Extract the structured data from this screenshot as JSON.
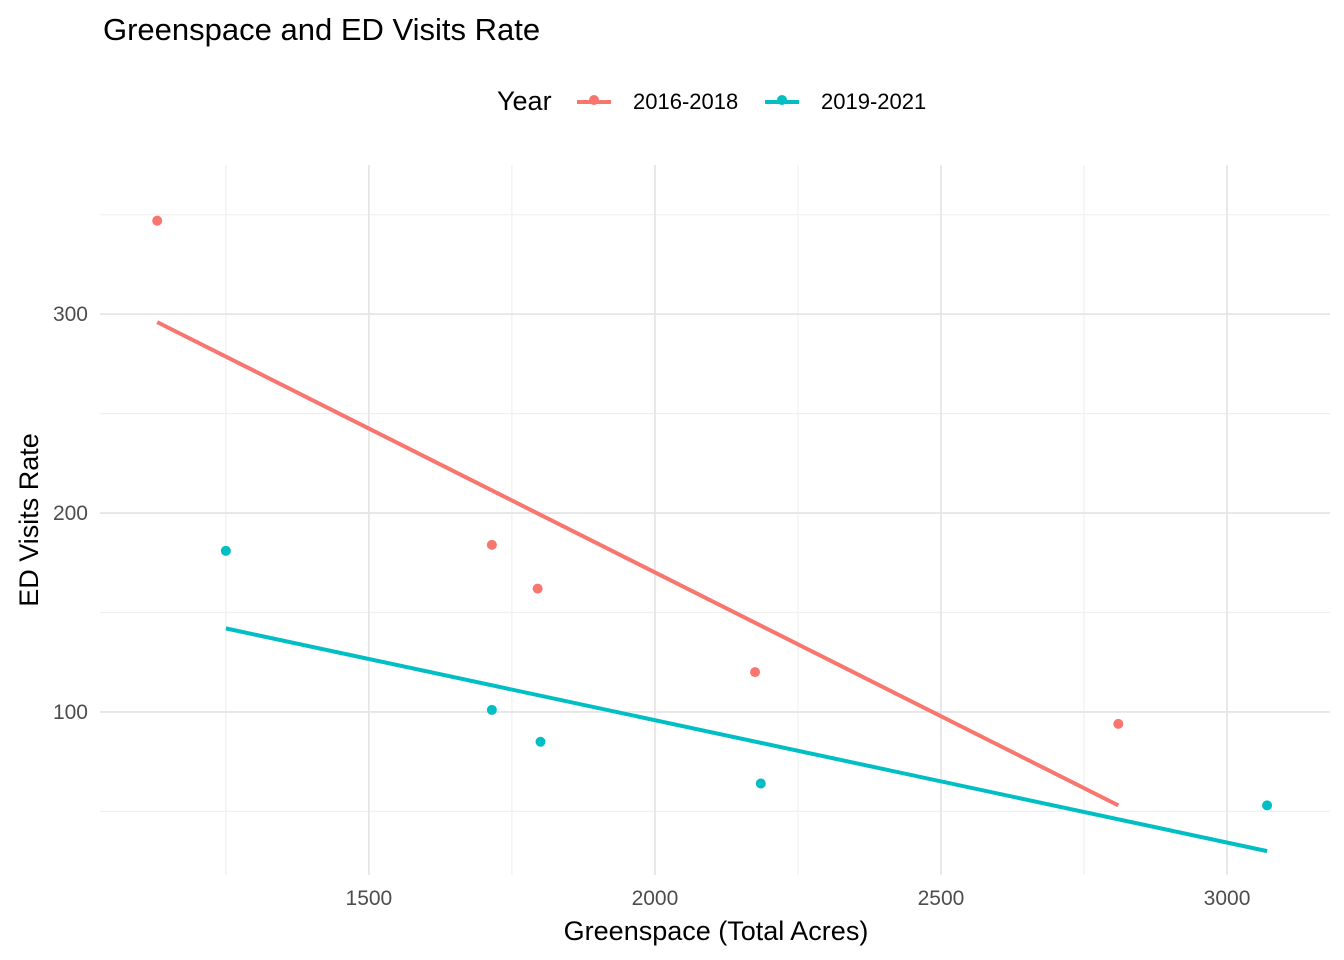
{
  "chart_data": {
    "type": "scatter",
    "title": "Greenspace and ED Visits Rate",
    "xlabel": "Greenspace (Total Acres)",
    "ylabel": "ED Visits Rate",
    "xlim": [
      1030,
      3180
    ],
    "ylim": [
      18,
      375
    ],
    "x_ticks": [
      1500,
      2000,
      2500,
      3000
    ],
    "y_ticks": [
      100,
      200,
      300
    ],
    "x_minor": [
      1250,
      1750,
      2250,
      2750
    ],
    "y_minor": [
      50,
      150,
      250,
      350
    ],
    "grid": true,
    "legend": {
      "title": "Year",
      "position": "top"
    },
    "series": [
      {
        "name": "2016-2018",
        "color": "#F8766D",
        "points": [
          [
            1130,
            347
          ],
          [
            1715,
            184
          ],
          [
            1795,
            162
          ],
          [
            2175,
            120
          ],
          [
            2810,
            94
          ]
        ],
        "trend": [
          [
            1130,
            296
          ],
          [
            2810,
            53
          ]
        ]
      },
      {
        "name": "2019-2021",
        "color": "#00BFC4",
        "points": [
          [
            1250,
            181
          ],
          [
            1715,
            101
          ],
          [
            1800,
            85
          ],
          [
            2185,
            64
          ],
          [
            3070,
            53
          ]
        ],
        "trend": [
          [
            1250,
            142
          ],
          [
            3070,
            30
          ]
        ]
      }
    ]
  }
}
